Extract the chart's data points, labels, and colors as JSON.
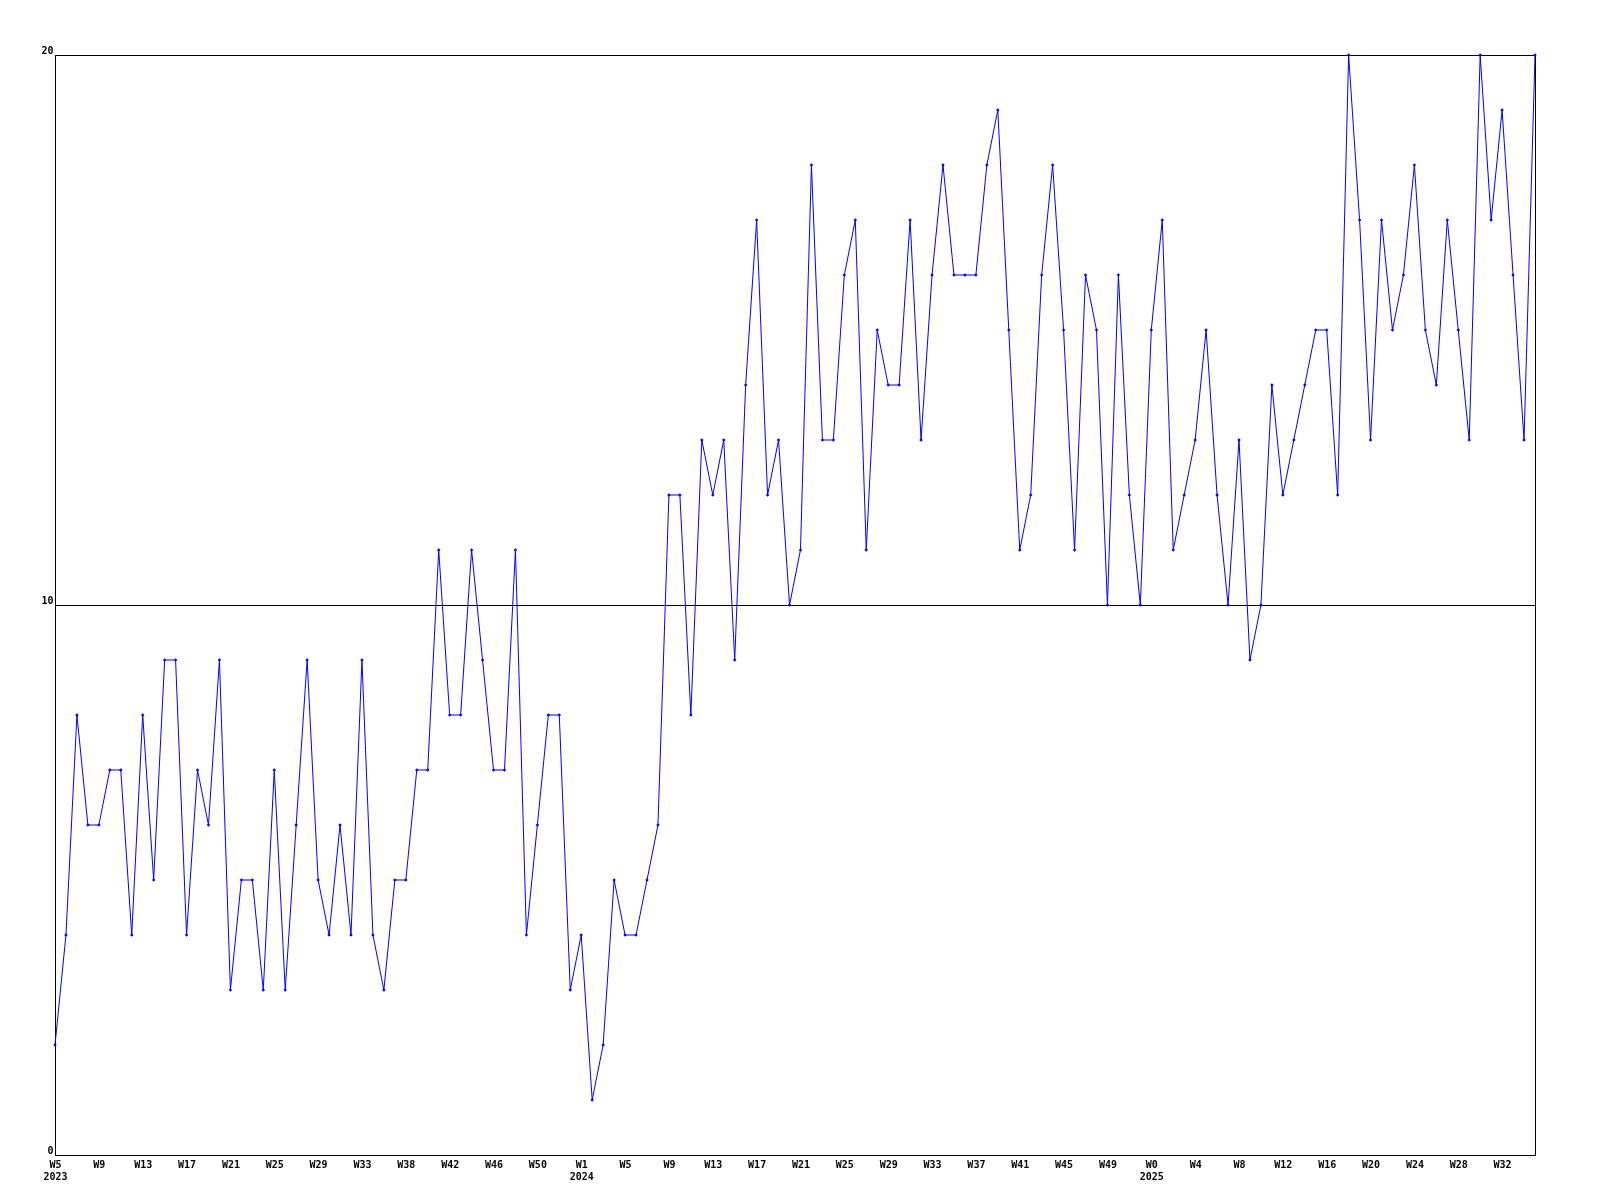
{
  "chart_data": {
    "type": "line",
    "categories": [
      "W5\n2023",
      null,
      null,
      null,
      "W9",
      null,
      null,
      null,
      "W13",
      null,
      null,
      null,
      "W17",
      null,
      null,
      null,
      "W21",
      null,
      null,
      null,
      "W25",
      null,
      null,
      null,
      "W29",
      null,
      null,
      null,
      "W33",
      null,
      null,
      null,
      "W38",
      null,
      null,
      null,
      "W42",
      null,
      null,
      null,
      "W46",
      null,
      null,
      null,
      "W50",
      null,
      null,
      null,
      "W1\n2024",
      null,
      null,
      null,
      "W5",
      null,
      null,
      null,
      "W9",
      null,
      null,
      null,
      "W13",
      null,
      null,
      null,
      "W17",
      null,
      null,
      null,
      "W21",
      null,
      null,
      null,
      "W25",
      null,
      null,
      null,
      "W29",
      null,
      null,
      null,
      "W33",
      null,
      null,
      null,
      "W37",
      null,
      null,
      null,
      "W41",
      null,
      null,
      null,
      "W45",
      null,
      null,
      null,
      "W49",
      null,
      null,
      null,
      "W0\n2025",
      null,
      null,
      null,
      "W4",
      null,
      null,
      null,
      "W8",
      null,
      null,
      null,
      "W12",
      null,
      null,
      null,
      "W16",
      null,
      null,
      null,
      "W20",
      null,
      null,
      null,
      "W24",
      null,
      null,
      null,
      "W28",
      null,
      null,
      null,
      "W32",
      null,
      null,
      null
    ],
    "series": [
      {
        "color": "#0000ff",
        "values": [
          2,
          4,
          8,
          6,
          6,
          7,
          7,
          4,
          8,
          5,
          9,
          9,
          4,
          7,
          6,
          9,
          3,
          5,
          5,
          3,
          7,
          3,
          6,
          9,
          5,
          4,
          6,
          4,
          9,
          4,
          3,
          5,
          5,
          7,
          7,
          11,
          8,
          8,
          11,
          9,
          7,
          7,
          11,
          4,
          6,
          8,
          8,
          3,
          4,
          1,
          2,
          5,
          4,
          4,
          5,
          6,
          12,
          12,
          8,
          13,
          12,
          13,
          9,
          14,
          17,
          12,
          13,
          10,
          11,
          18,
          13,
          13,
          16,
          17,
          11,
          15,
          14,
          14,
          17,
          13,
          16,
          18,
          16,
          16,
          16,
          18,
          19,
          15,
          11,
          12,
          16,
          18,
          15,
          11,
          16,
          15,
          10,
          16,
          12,
          10,
          15,
          17,
          11,
          12,
          13,
          15,
          12,
          10,
          13,
          9,
          10,
          14,
          12,
          13,
          14,
          15,
          15,
          12,
          20,
          17,
          13,
          17,
          15,
          16,
          18,
          15,
          14,
          17,
          15,
          13,
          20,
          17,
          19,
          16,
          13,
          20
        ]
      }
    ],
    "ylim": [
      0,
      20
    ],
    "yticks": [
      0,
      10,
      20
    ],
    "grid": "y",
    "marker": "diamond",
    "line_style": "solid"
  }
}
